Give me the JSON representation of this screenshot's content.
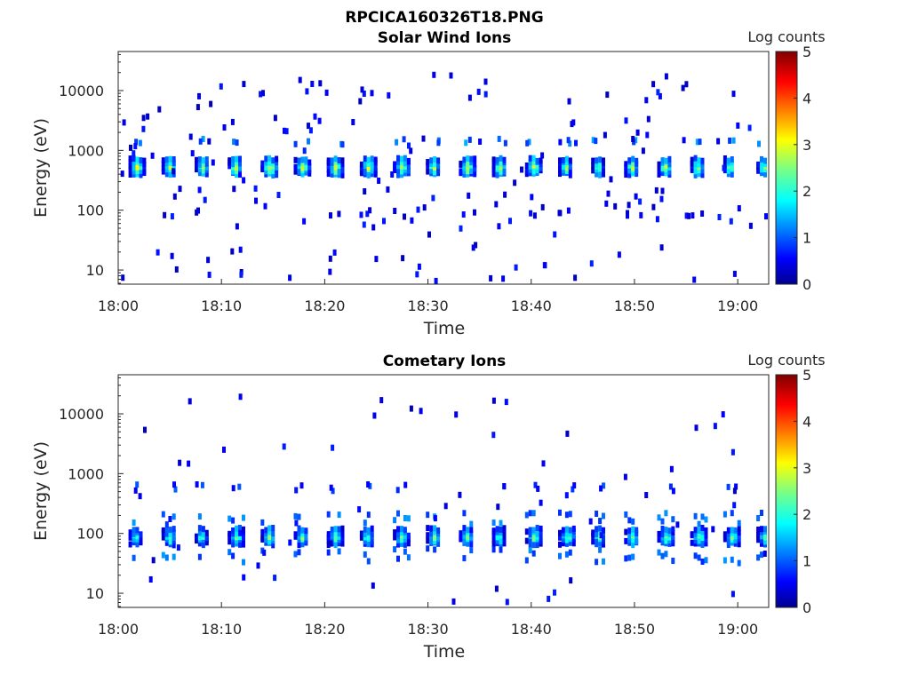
{
  "figure": {
    "title": "RPCICA160326T18.PNG"
  },
  "chart_data": [
    {
      "type": "heatmap",
      "title": "Solar Wind Ions",
      "xlabel": "Time",
      "ylabel": "Energy (eV)",
      "colorbar_label": "Log counts",
      "x_ticks": [
        "18:00",
        "18:10",
        "18:20",
        "18:30",
        "18:40",
        "18:50",
        "19:00"
      ],
      "x_range_minutes": [
        0,
        63
      ],
      "y_ticks": [
        "10",
        "100",
        "1000",
        "10000"
      ],
      "y_scale": "log",
      "y_range": [
        5.8,
        45000
      ],
      "colorbar_ticks": [
        "0",
        "1",
        "2",
        "3",
        "4",
        "5"
      ],
      "colorbar_range": [
        0,
        5
      ],
      "colormap": "jet",
      "main_band": {
        "energy_eV": 600,
        "peak_log_counts": 3.0,
        "period_minutes": 3.2
      },
      "secondary_bands": [
        {
          "energy_eV": 1600,
          "log_counts": 1.3
        },
        {
          "energy_eV": 100,
          "log_counts": 0.6
        }
      ]
    },
    {
      "type": "heatmap",
      "title": "Cometary Ions",
      "xlabel": "Time",
      "ylabel": "Energy (eV)",
      "colorbar_label": "Log counts",
      "x_ticks": [
        "18:00",
        "18:10",
        "18:20",
        "18:30",
        "18:40",
        "18:50",
        "19:00"
      ],
      "x_range_minutes": [
        0,
        63
      ],
      "y_ticks": [
        "10",
        "100",
        "1000",
        "10000"
      ],
      "y_scale": "log",
      "y_range": [
        5.8,
        45000
      ],
      "colorbar_ticks": [
        "0",
        "1",
        "2",
        "3",
        "4",
        "5"
      ],
      "colorbar_range": [
        0,
        5
      ],
      "colormap": "jet",
      "main_band": {
        "energy_eV": 100,
        "peak_log_counts": 2.5,
        "period_minutes": 3.2
      },
      "secondary_bands": [
        {
          "energy_eV": 650,
          "log_counts": 0.9
        }
      ]
    }
  ]
}
